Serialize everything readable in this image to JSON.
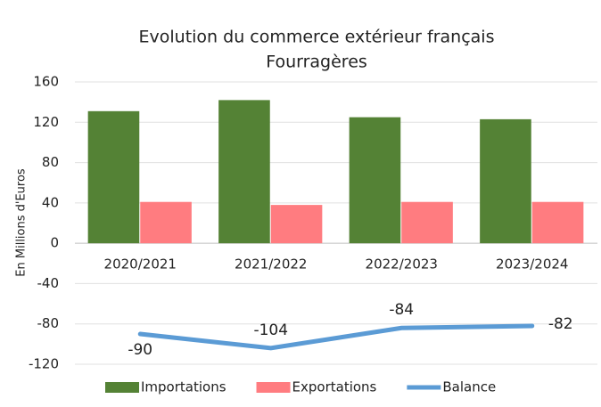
{
  "chart_data": {
    "type": "bar-line",
    "title": "Evolution du commerce extérieur français",
    "subtitle": "Fourragères",
    "y_label": "En Millions d'Euros",
    "categories": [
      "2020/2021",
      "2021/2022",
      "2022/2023",
      "2023/2024"
    ],
    "series": [
      {
        "name": "Importations",
        "type": "bar",
        "color": "#548235",
        "values": [
          131,
          142,
          125,
          123
        ]
      },
      {
        "name": "Exportations",
        "type": "bar",
        "color": "#ff7c80",
        "values": [
          41,
          38,
          41,
          41
        ]
      },
      {
        "name": "Balance",
        "type": "line",
        "color": "#5b9bd5",
        "values": [
          -90,
          -104,
          -84,
          -82
        ]
      }
    ],
    "ylim": [
      -120,
      160
    ],
    "yticks": [
      -120,
      -80,
      -40,
      0,
      40,
      80,
      120,
      160
    ],
    "grid": true,
    "legend": "bottom"
  }
}
